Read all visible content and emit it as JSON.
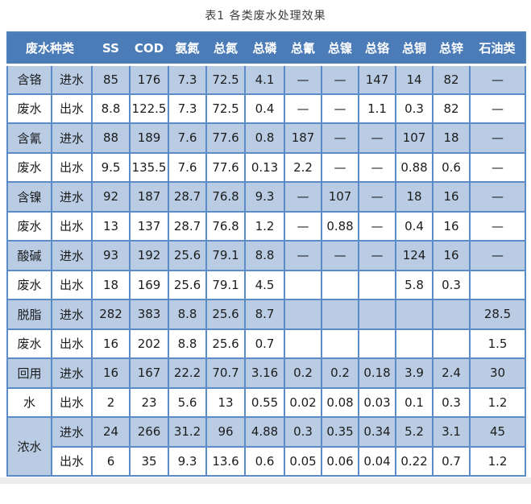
{
  "title": "表1 各类废水处理效果",
  "table": {
    "header": {
      "group_label": "废水种类",
      "columns": [
        "SS",
        "COD",
        "氨氮",
        "总氮",
        "总磷",
        "总氰",
        "总镍",
        "总铬",
        "总铜",
        "总锌",
        "石油类"
      ]
    },
    "flow_labels": [
      "进水",
      "出水"
    ],
    "empty_marker": "—",
    "groups": [
      {
        "labels": [
          "含铬",
          "废水"
        ],
        "rows": [
          [
            "85",
            "176",
            "7.3",
            "72.5",
            "4.1",
            "—",
            "—",
            "147",
            "14",
            "82",
            "—"
          ],
          [
            "8.8",
            "122.5",
            "7.3",
            "72.5",
            "0.4",
            "—",
            "—",
            "1.1",
            "0.3",
            "82",
            "—"
          ]
        ]
      },
      {
        "labels": [
          "含氰",
          "废水"
        ],
        "rows": [
          [
            "88",
            "189",
            "7.6",
            "77.6",
            "0.8",
            "187",
            "—",
            "—",
            "107",
            "18",
            "—"
          ],
          [
            "9.5",
            "135.5",
            "7.6",
            "77.6",
            "0.13",
            "2.2",
            "—",
            "—",
            "0.88",
            "0.6",
            "—"
          ]
        ]
      },
      {
        "labels": [
          "含镍",
          "废水"
        ],
        "rows": [
          [
            "92",
            "187",
            "28.7",
            "76.8",
            "9.3",
            "—",
            "107",
            "—",
            "18",
            "16",
            "—"
          ],
          [
            "13",
            "137",
            "28.7",
            "76.8",
            "1.2",
            "—",
            "0.88",
            "—",
            "0.4",
            "16",
            "—"
          ]
        ]
      },
      {
        "labels": [
          "酸碱",
          "废水"
        ],
        "rows": [
          [
            "93",
            "192",
            "25.6",
            "79.1",
            "8.8",
            "—",
            "—",
            "—",
            "124",
            "16",
            "—"
          ],
          [
            "18",
            "169",
            "25.6",
            "79.1",
            "4.5",
            "",
            "",
            "",
            "5.8",
            "0.3",
            ""
          ]
        ]
      },
      {
        "labels": [
          "脱脂",
          "废水"
        ],
        "rows": [
          [
            "282",
            "383",
            "8.8",
            "25.6",
            "8.7",
            "",
            "",
            "",
            "",
            "",
            "28.5"
          ],
          [
            "16",
            "202",
            "8.8",
            "25.6",
            "0.7",
            "",
            "",
            "",
            "",
            "",
            "1.5"
          ]
        ]
      },
      {
        "labels": [
          "回用",
          "水"
        ],
        "rows": [
          [
            "16",
            "167",
            "22.2",
            "70.7",
            "3.16",
            "0.2",
            "0.2",
            "0.18",
            "3.9",
            "2.4",
            "30"
          ],
          [
            "2",
            "23",
            "5.6",
            "13",
            "0.55",
            "0.02",
            "0.08",
            "0.03",
            "0.1",
            "0.3",
            "1.2"
          ]
        ]
      },
      {
        "labels": [
          "浓水"
        ],
        "rows": [
          [
            "24",
            "266",
            "31.2",
            "96",
            "4.88",
            "0.3",
            "0.35",
            "0.34",
            "5.2",
            "3.1",
            "45"
          ],
          [
            "6",
            "35",
            "9.3",
            "13.6",
            "0.6",
            "0.05",
            "0.06",
            "0.04",
            "0.22",
            "0.7",
            "1.2"
          ]
        ]
      }
    ]
  },
  "colors": {
    "header_bg": "#4b7cb8",
    "header_text": "#ffffff",
    "stripe_blue": "#b9cce4",
    "border_blue": "#5b8cc8",
    "cell_text": "#1c1c1c"
  }
}
